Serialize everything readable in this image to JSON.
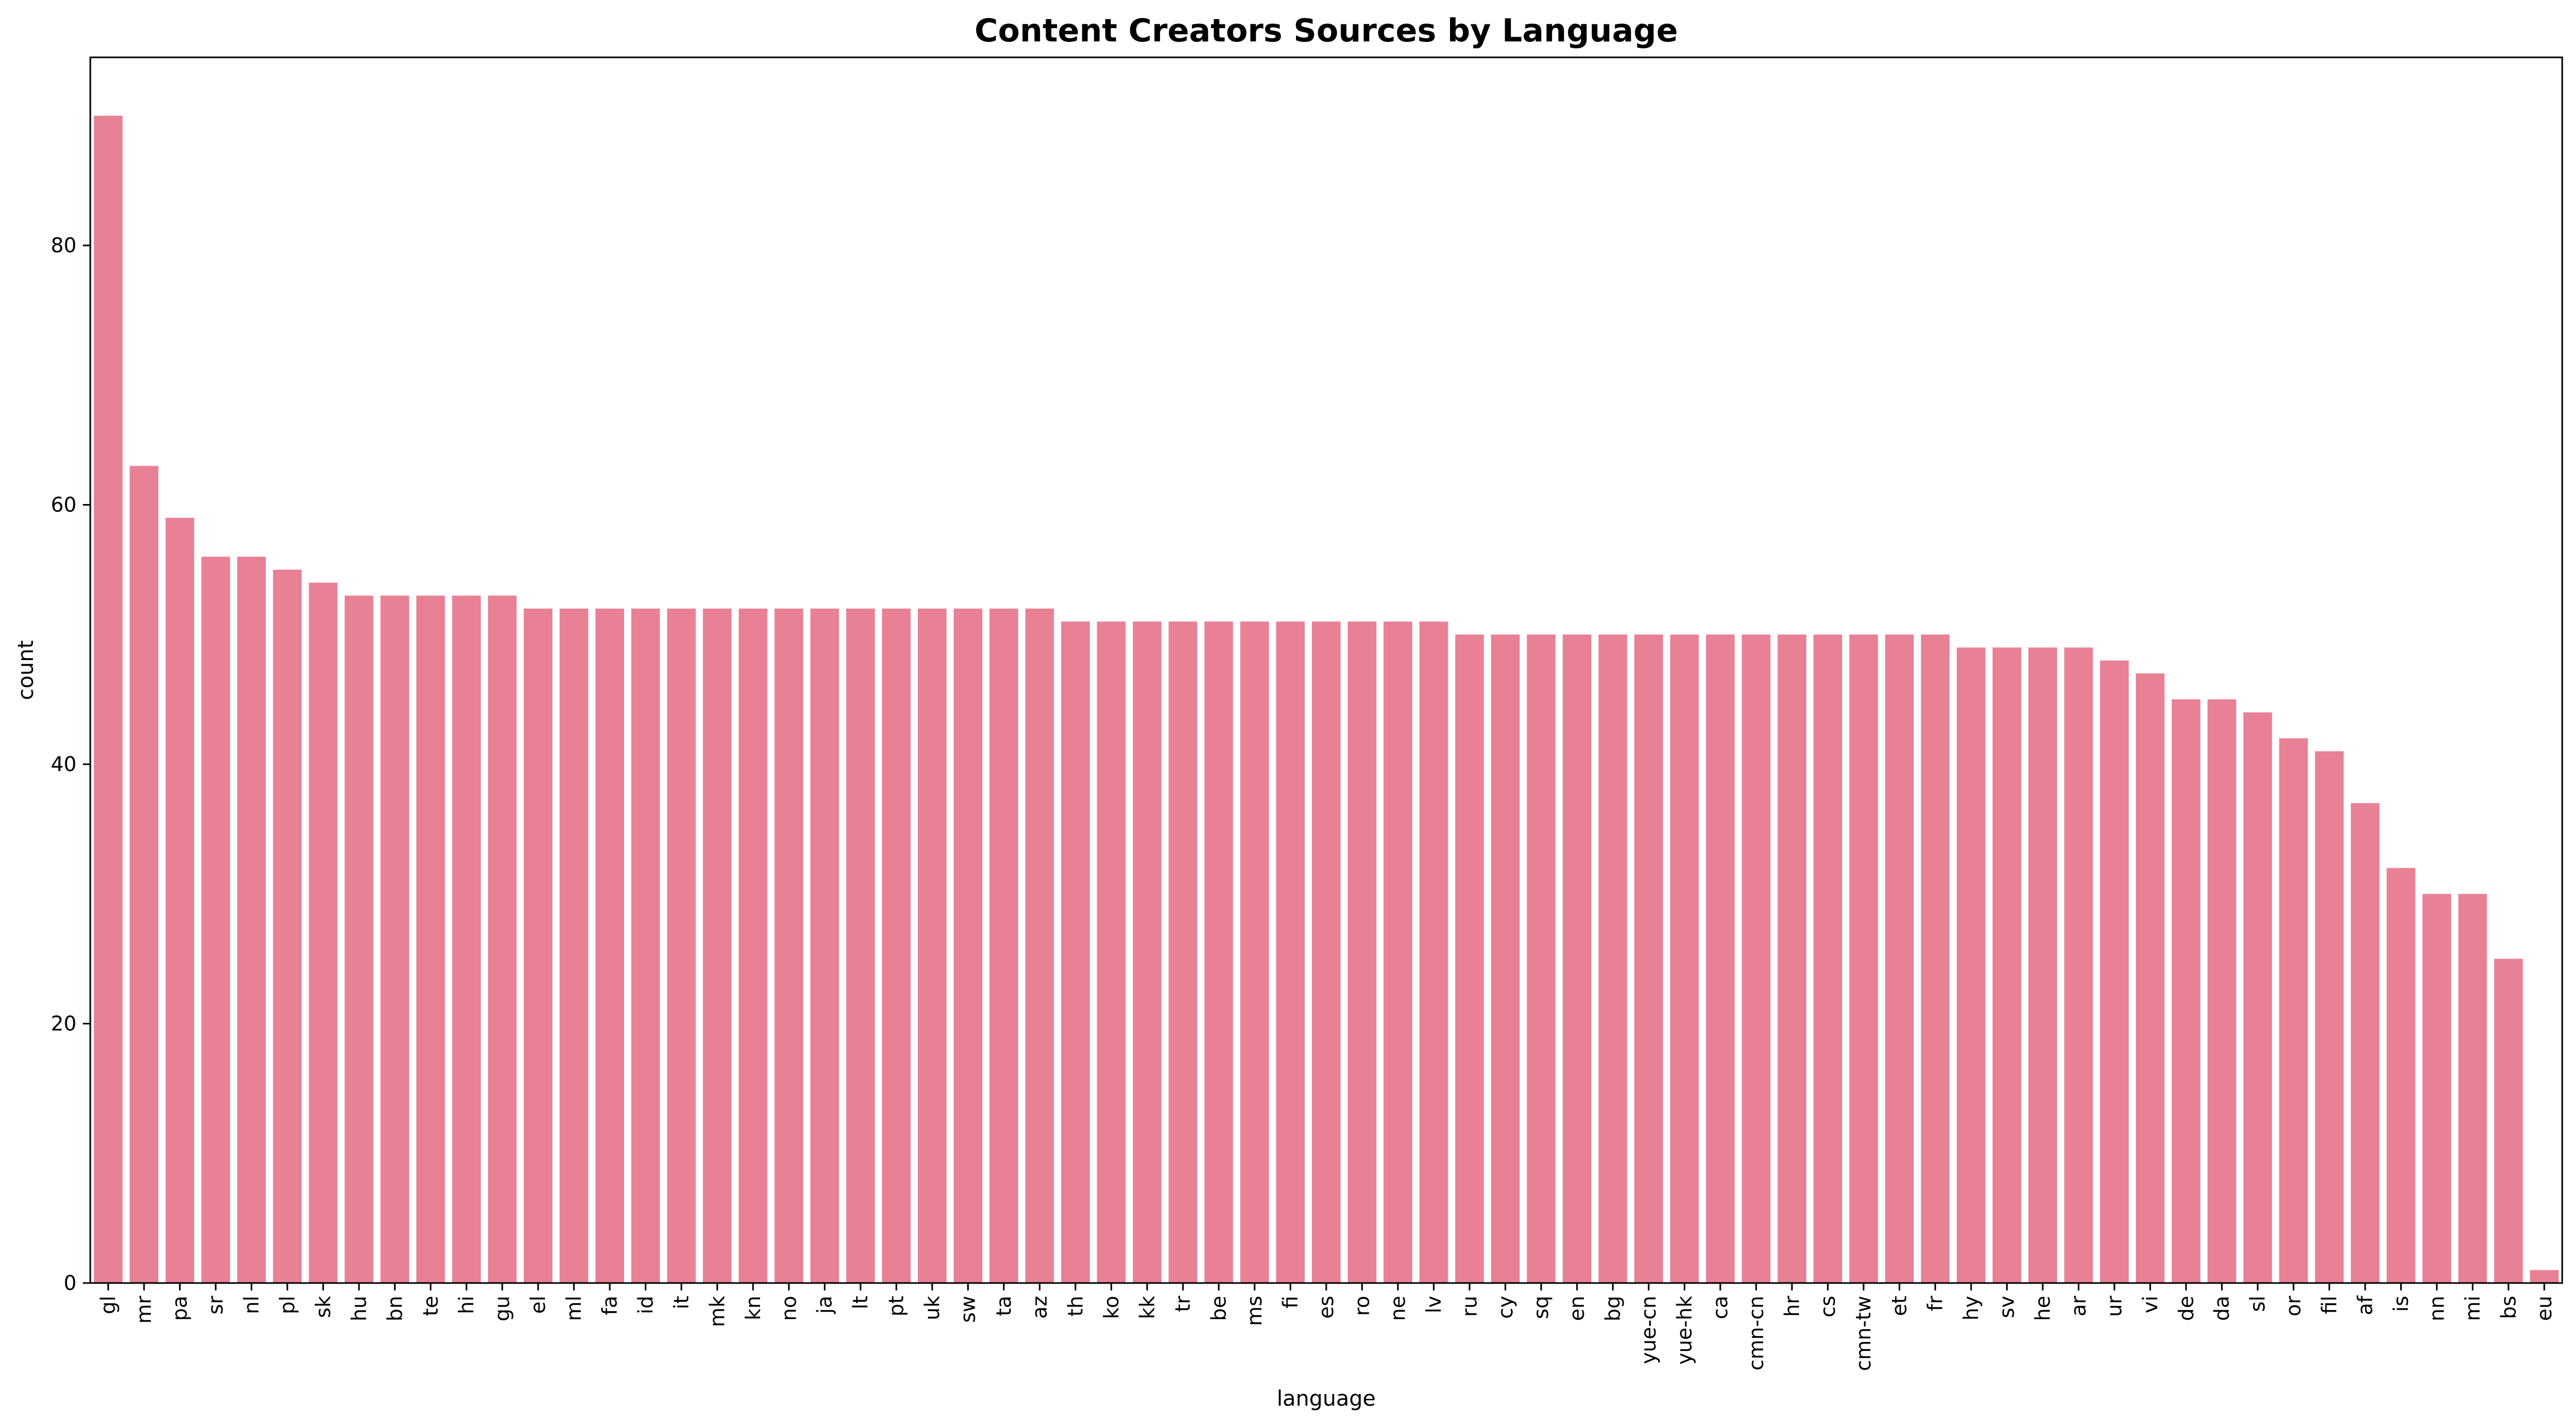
{
  "chart_data": {
    "type": "bar",
    "title": "Content Creators Sources by Language",
    "xlabel": "language",
    "ylabel": "count",
    "ylim": [
      0,
      94.5
    ],
    "yticks": [
      0,
      20,
      40,
      60,
      80
    ],
    "bar_color": "#e88195",
    "grid": false,
    "categories": [
      "gl",
      "mr",
      "pa",
      "sr",
      "nl",
      "pl",
      "sk",
      "hu",
      "bn",
      "te",
      "hi",
      "gu",
      "el",
      "ml",
      "fa",
      "id",
      "it",
      "mk",
      "kn",
      "no",
      "ja",
      "lt",
      "pt",
      "uk",
      "sw",
      "ta",
      "az",
      "th",
      "ko",
      "kk",
      "tr",
      "be",
      "ms",
      "fi",
      "es",
      "ro",
      "ne",
      "lv",
      "ru",
      "cy",
      "sq",
      "en",
      "bg",
      "yue-cn",
      "yue-hk",
      "ca",
      "cmn-cn",
      "hr",
      "cs",
      "cmn-tw",
      "et",
      "fr",
      "hy",
      "sv",
      "he",
      "ar",
      "ur",
      "vi",
      "de",
      "da",
      "sl",
      "or",
      "fil",
      "af",
      "is",
      "nn",
      "mi",
      "bs",
      "eu"
    ],
    "values": [
      90,
      63,
      59,
      56,
      56,
      55,
      54,
      53,
      53,
      53,
      53,
      53,
      52,
      52,
      52,
      52,
      52,
      52,
      52,
      52,
      52,
      52,
      52,
      52,
      52,
      52,
      52,
      51,
      51,
      51,
      51,
      51,
      51,
      51,
      51,
      51,
      51,
      51,
      50,
      50,
      50,
      50,
      50,
      50,
      50,
      50,
      50,
      50,
      50,
      50,
      50,
      50,
      49,
      49,
      49,
      49,
      48,
      47,
      45,
      45,
      44,
      42,
      41,
      37,
      32,
      30,
      30,
      25,
      1
    ]
  }
}
